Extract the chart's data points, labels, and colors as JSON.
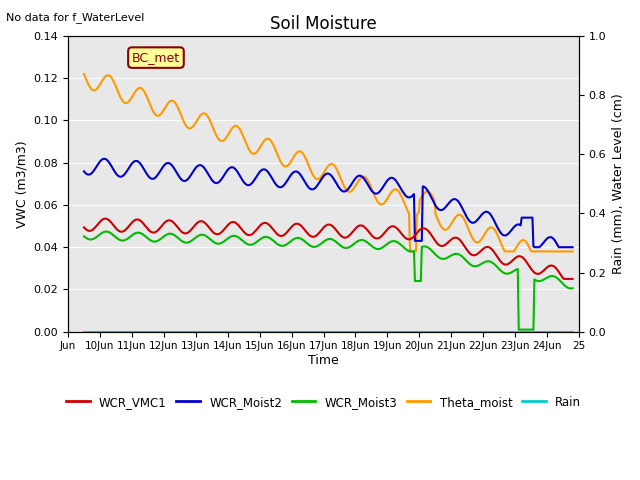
{
  "title": "Soil Moisture",
  "subtitle": "No data for f_WaterLevel",
  "xlabel": "Time",
  "ylabel_left": "VWC (m3/m3)",
  "ylabel_right": "Rain (mm), Water Level (cm)",
  "ylim_left": [
    0.0,
    0.14
  ],
  "ylim_right": [
    0.0,
    1.0
  ],
  "bg_color": "#e8e8e8",
  "tick_labels": [
    "Jun",
    "10Jun",
    "11Jun",
    "12Jun",
    "13Jun",
    "14Jun",
    "15Jun",
    "16Jun",
    "17Jun",
    "18Jun",
    "19Jun",
    "20Jun",
    "21Jun",
    "22Jun",
    "23Jun",
    "24Jun",
    "25"
  ],
  "yticks_left": [
    0.0,
    0.02,
    0.04,
    0.06,
    0.08,
    0.1,
    0.12,
    0.14
  ],
  "yticks_right": [
    0.0,
    0.2,
    0.4,
    0.6,
    0.8,
    1.0
  ],
  "colors": {
    "WCR_VMC1": "#cc0000",
    "WCR_Moist2": "#0000cc",
    "WCR_Moist3": "#00bb00",
    "Theta_moist": "#ff9900",
    "Rain": "#00cccc"
  },
  "lw": 1.5,
  "legend_label": "BC_met",
  "legend_box_color": "#ffff99",
  "legend_box_border": "#880000"
}
